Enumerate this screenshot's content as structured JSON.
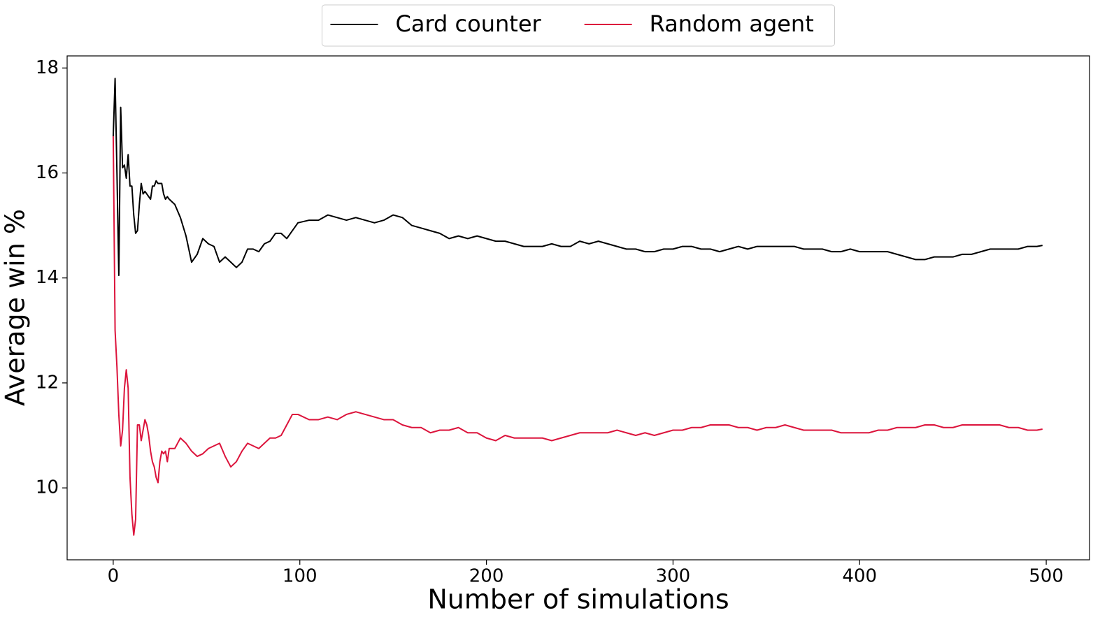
{
  "chart_data": {
    "type": "line",
    "xlabel": "Number of simulations",
    "ylabel": "Average win %",
    "x": [
      0,
      1,
      2,
      3,
      4,
      5,
      6,
      7,
      8,
      9,
      10,
      11,
      12,
      13,
      14,
      15,
      16,
      17,
      18,
      19,
      20,
      21,
      22,
      23,
      24,
      25,
      26,
      27,
      28,
      29,
      30,
      33,
      36,
      39,
      42,
      45,
      48,
      51,
      54,
      57,
      60,
      63,
      66,
      69,
      72,
      75,
      78,
      81,
      84,
      87,
      90,
      93,
      96,
      99,
      105,
      110,
      115,
      120,
      125,
      130,
      135,
      140,
      145,
      150,
      155,
      160,
      165,
      170,
      175,
      180,
      185,
      190,
      195,
      200,
      205,
      210,
      215,
      220,
      225,
      230,
      235,
      240,
      245,
      250,
      255,
      260,
      265,
      270,
      275,
      280,
      285,
      290,
      295,
      300,
      305,
      310,
      315,
      320,
      325,
      330,
      335,
      340,
      345,
      350,
      355,
      360,
      365,
      370,
      375,
      380,
      385,
      390,
      395,
      400,
      405,
      410,
      415,
      420,
      425,
      430,
      435,
      440,
      445,
      450,
      455,
      460,
      465,
      470,
      475,
      480,
      485,
      490,
      495,
      498
    ],
    "series": [
      {
        "name": "Card counter",
        "color": "#000000",
        "values": [
          16.7,
          17.8,
          16.0,
          14.05,
          17.25,
          16.1,
          16.15,
          15.9,
          16.35,
          15.75,
          15.75,
          15.2,
          14.85,
          14.9,
          15.4,
          15.8,
          15.6,
          15.65,
          15.6,
          15.55,
          15.5,
          15.75,
          15.75,
          15.85,
          15.8,
          15.8,
          15.8,
          15.6,
          15.5,
          15.55,
          15.5,
          15.4,
          15.15,
          14.8,
          14.3,
          14.45,
          14.75,
          14.65,
          14.6,
          14.3,
          14.4,
          14.3,
          14.2,
          14.3,
          14.55,
          14.55,
          14.5,
          14.65,
          14.7,
          14.85,
          14.85,
          14.75,
          14.9,
          15.05,
          15.1,
          15.1,
          15.2,
          15.15,
          15.1,
          15.15,
          15.1,
          15.05,
          15.1,
          15.2,
          15.15,
          15.0,
          14.95,
          14.9,
          14.85,
          14.75,
          14.8,
          14.75,
          14.8,
          14.75,
          14.7,
          14.7,
          14.65,
          14.6,
          14.6,
          14.6,
          14.65,
          14.6,
          14.6,
          14.7,
          14.65,
          14.7,
          14.65,
          14.6,
          14.55,
          14.55,
          14.5,
          14.5,
          14.55,
          14.55,
          14.6,
          14.6,
          14.55,
          14.55,
          14.5,
          14.55,
          14.6,
          14.55,
          14.6,
          14.6,
          14.6,
          14.6,
          14.6,
          14.55,
          14.55,
          14.55,
          14.5,
          14.5,
          14.55,
          14.5,
          14.5,
          14.5,
          14.5,
          14.45,
          14.4,
          14.35,
          14.35,
          14.4,
          14.4,
          14.4,
          14.45,
          14.45,
          14.5,
          14.55,
          14.55,
          14.55,
          14.55,
          14.6,
          14.6,
          14.62
        ]
      },
      {
        "name": "Random agent",
        "color": "#dc143c",
        "values": [
          16.7,
          13.0,
          12.3,
          11.4,
          10.8,
          11.1,
          11.9,
          12.25,
          11.9,
          10.2,
          9.5,
          9.1,
          9.4,
          11.2,
          11.2,
          10.9,
          11.1,
          11.3,
          11.2,
          11.0,
          10.7,
          10.5,
          10.4,
          10.2,
          10.1,
          10.5,
          10.7,
          10.65,
          10.7,
          10.5,
          10.75,
          10.75,
          10.95,
          10.85,
          10.7,
          10.6,
          10.65,
          10.75,
          10.8,
          10.85,
          10.6,
          10.4,
          10.5,
          10.7,
          10.85,
          10.8,
          10.75,
          10.85,
          10.95,
          10.95,
          11.0,
          11.2,
          11.4,
          11.4,
          11.3,
          11.3,
          11.35,
          11.3,
          11.4,
          11.45,
          11.4,
          11.35,
          11.3,
          11.3,
          11.2,
          11.15,
          11.15,
          11.05,
          11.1,
          11.1,
          11.15,
          11.05,
          11.05,
          10.95,
          10.9,
          11.0,
          10.95,
          10.95,
          10.95,
          10.95,
          10.9,
          10.95,
          11.0,
          11.05,
          11.05,
          11.05,
          11.05,
          11.1,
          11.05,
          11.0,
          11.05,
          11.0,
          11.05,
          11.1,
          11.1,
          11.15,
          11.15,
          11.2,
          11.2,
          11.2,
          11.15,
          11.15,
          11.1,
          11.15,
          11.15,
          11.2,
          11.15,
          11.1,
          11.1,
          11.1,
          11.1,
          11.05,
          11.05,
          11.05,
          11.05,
          11.1,
          11.1,
          11.15,
          11.15,
          11.15,
          11.2,
          11.2,
          11.15,
          11.15,
          11.2,
          11.2,
          11.2,
          11.2,
          11.2,
          11.15,
          11.15,
          11.1,
          11.1,
          11.12
        ]
      }
    ],
    "xlim": [
      -24.7,
      523.2
    ],
    "xticks": [
      0,
      100,
      200,
      300,
      400,
      500
    ],
    "ylim": [
      8.63,
      18.23
    ],
    "yticks": [
      10,
      12,
      14,
      16,
      18
    ],
    "legend": "top"
  }
}
